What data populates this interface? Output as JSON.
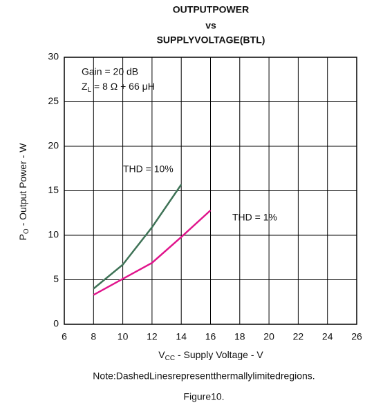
{
  "chart_data": {
    "type": "line",
    "title": [
      "OUTPUTPOWER",
      "vs",
      "SUPPLYVOLTAGE(BTL)"
    ],
    "annotations": {
      "gain": "Gain = 20 dB",
      "z_main": "Z",
      "z_sub": "L",
      "z_rest": " = 8 Ω + 66 μH"
    },
    "x_label": {
      "main": "V",
      "sub": "CC",
      "rest": " - Supply Voltage - V"
    },
    "y_label": {
      "main": "P",
      "sub": "O",
      "rest": " - Output Power - W"
    },
    "x": [
      8,
      10,
      12,
      14,
      16
    ],
    "series": [
      {
        "name": "THD = 10%",
        "color": "#3f7357",
        "values": [
          4.0,
          6.7,
          10.9,
          15.7,
          null
        ]
      },
      {
        "name": "THD = 1%",
        "color": "#e0158c",
        "values": [
          3.3,
          5.1,
          6.9,
          9.8,
          12.8
        ]
      }
    ],
    "xlim": [
      6,
      26
    ],
    "xticks": [
      6,
      8,
      10,
      12,
      14,
      16,
      18,
      20,
      22,
      24,
      26
    ],
    "ylim": [
      0,
      30
    ],
    "yticks": [
      0,
      5,
      10,
      15,
      20,
      25,
      30
    ],
    "grid": true,
    "note": "Note:DashedLinesrepresentthermallylimitedregions.",
    "figure": "Figure10."
  }
}
